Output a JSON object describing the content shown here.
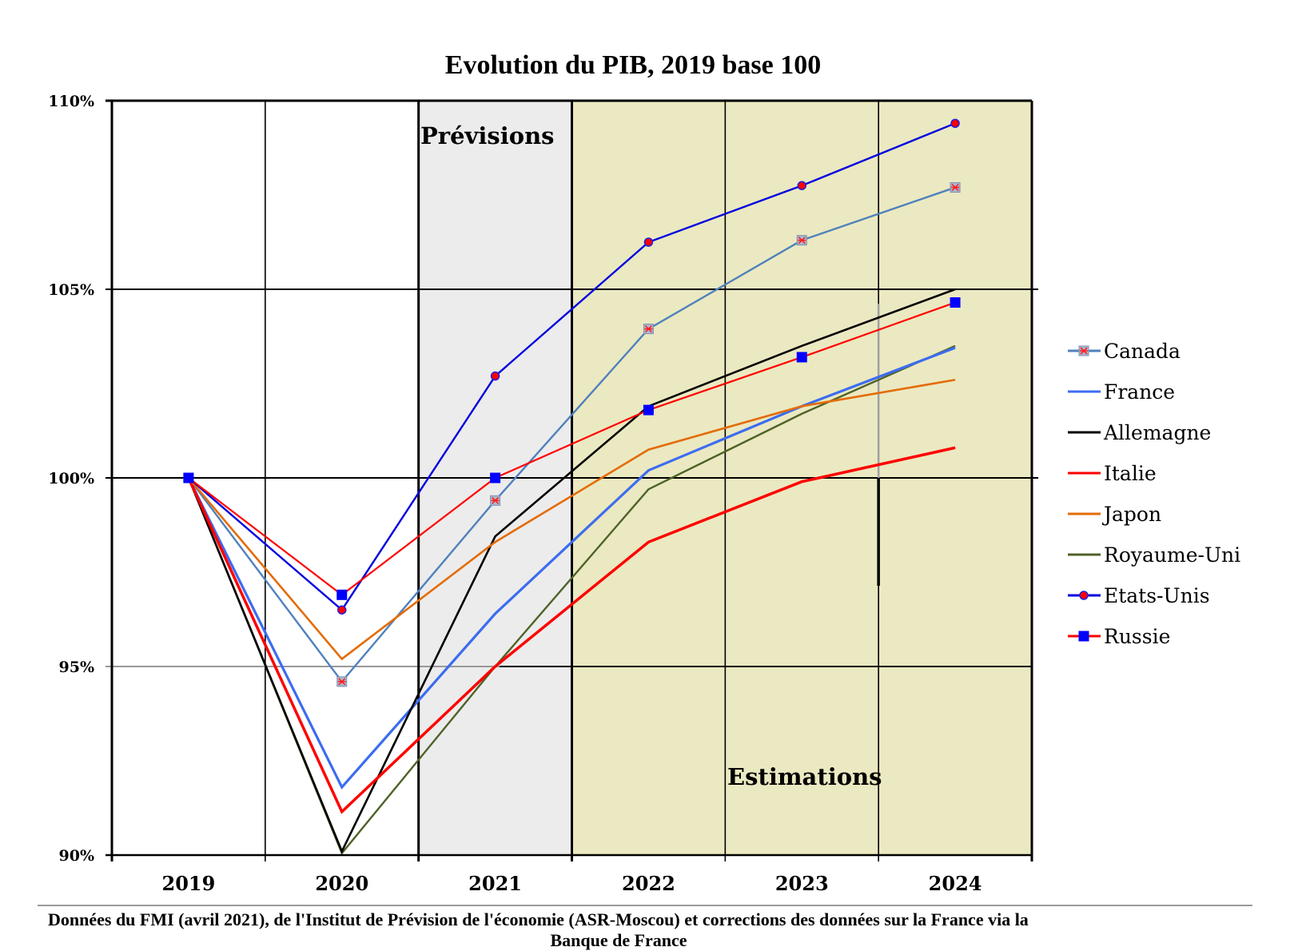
{
  "chart_data": {
    "type": "line",
    "title": "Evolution du PIB, 2019 base 100",
    "xlabel": "",
    "ylabel": "",
    "categories": [
      "2019",
      "2020",
      "2021",
      "2022",
      "2023",
      "2024"
    ],
    "ylim": [
      90,
      110
    ],
    "yticks": [
      90,
      95,
      100,
      105,
      110
    ],
    "ytick_labels": [
      "90%",
      "95%",
      "100%",
      "105%",
      "110%"
    ],
    "grid": true,
    "legend_position": "right",
    "annotations": [
      {
        "text": "Prévisions",
        "region": "2021 shaded grey"
      },
      {
        "text": "Estimations",
        "region": "2022-2024 shaded yellow"
      }
    ],
    "shaded_regions": [
      {
        "label": "Prévisions",
        "from_category": "2021",
        "to_category": "2021",
        "color": "#ececec"
      },
      {
        "label": "Estimations",
        "from_category": "2022",
        "to_category": "2024",
        "color": "#ebe9c1"
      }
    ],
    "series": [
      {
        "name": "Royaume-Uni",
        "color": "#4f6228",
        "marker": "none",
        "values": [
          100,
          90.05,
          95.0,
          99.7,
          101.7,
          103.5
        ]
      },
      {
        "name": "Canada",
        "color": "#4f81bd",
        "marker": "asterisk",
        "values": [
          100,
          94.6,
          99.4,
          103.95,
          106.3,
          107.7
        ]
      },
      {
        "name": "France",
        "color": "#3c6cf0",
        "marker": "none",
        "values": [
          100,
          91.8,
          96.4,
          100.2,
          101.9,
          103.45
        ]
      },
      {
        "name": "Allemagne",
        "color": "#000000",
        "marker": "none",
        "values": [
          100,
          90.1,
          98.45,
          101.9,
          103.5,
          105.0
        ]
      },
      {
        "name": "Italie",
        "color": "#ff0000",
        "marker": "none",
        "values": [
          100,
          91.15,
          95.0,
          98.3,
          99.9,
          100.8
        ]
      },
      {
        "name": "Japon",
        "color": "#e36c09",
        "marker": "none",
        "values": [
          100,
          95.2,
          98.3,
          100.75,
          101.9,
          102.6
        ]
      },
      {
        "name": "Etats-Unis",
        "color": "#0000e0",
        "marker": "circle",
        "values": [
          100,
          96.5,
          102.7,
          106.25,
          107.75,
          109.4
        ]
      },
      {
        "name": "Russie",
        "color": "#ff0000",
        "marker": "square",
        "values": [
          100,
          96.9,
          100.0,
          101.8,
          103.2,
          104.65
        ]
      }
    ],
    "legend_order": [
      "Canada",
      "France",
      "Allemagne",
      "Italie",
      "Japon",
      "Royaume-Uni",
      "Etats-Unis",
      "Russie"
    ]
  },
  "labels": {
    "title": "Evolution du PIB, 2019 base 100",
    "previsions": "Prévisions",
    "estimations": "Estimations",
    "footer_line1": "Données du FMI (avril 2021), de l'Institut de Prévision de  l'économie (ASR-Moscou) et corrections des données sur la France via la",
    "footer_line2": "Banque de France"
  },
  "colors": {
    "previsions_bg": "#ececec",
    "estimations_bg": "#ebe9c1",
    "grid": "#000000"
  }
}
